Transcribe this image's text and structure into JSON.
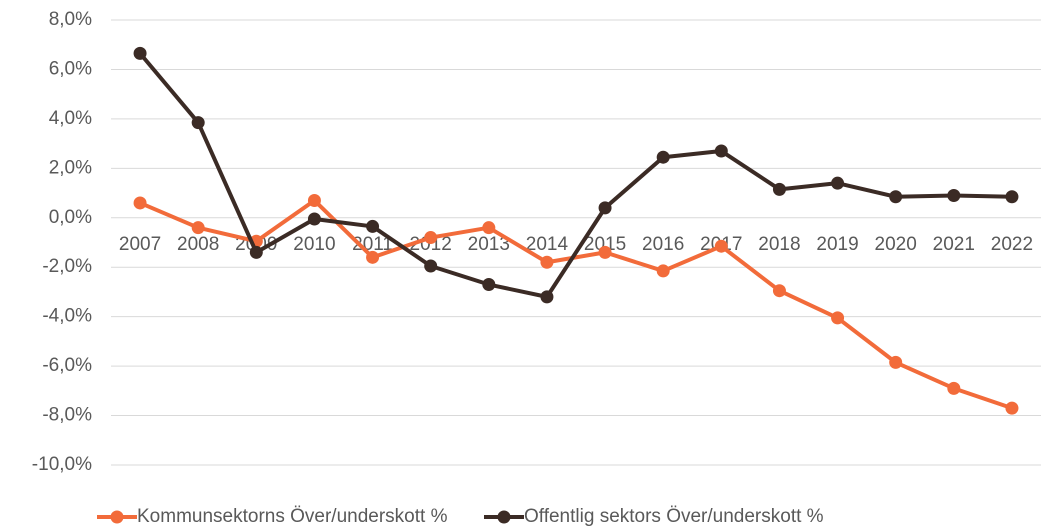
{
  "chart_data": {
    "type": "line",
    "categories": [
      "2007",
      "2008",
      "2009",
      "2010",
      "2011",
      "2012",
      "2013",
      "2014",
      "2015",
      "2016",
      "2017",
      "2018",
      "2019",
      "2020",
      "2021",
      "2022"
    ],
    "series": [
      {
        "name": "Kommunsektorns Över/underskott %",
        "color": "#f26b3a",
        "values": [
          0.6,
          -0.4,
          -0.95,
          0.7,
          -1.6,
          -0.8,
          -0.4,
          -1.8,
          -1.4,
          -2.15,
          -1.15,
          -2.95,
          -4.05,
          -5.85,
          -6.9,
          -7.7
        ]
      },
      {
        "name": "Offentlig sektors Över/underskott %",
        "color": "#3b2b25",
        "values": [
          6.65,
          3.85,
          -1.4,
          -0.05,
          -0.35,
          -1.95,
          -2.7,
          -3.2,
          0.4,
          2.45,
          2.7,
          1.15,
          1.4,
          0.85,
          0.9,
          0.85
        ]
      }
    ],
    "ylim": [
      -10,
      8
    ],
    "yticks": [
      {
        "value": -10,
        "label": "-10,0%"
      },
      {
        "value": -8,
        "label": "-8,0%"
      },
      {
        "value": -6,
        "label": "-6,0%"
      },
      {
        "value": -4,
        "label": "-4,0%"
      },
      {
        "value": -2,
        "label": "-2,0%"
      },
      {
        "value": 0,
        "label": "0,0%"
      },
      {
        "value": 2,
        "label": "2,0%"
      },
      {
        "value": 4,
        "label": "4,0%"
      },
      {
        "value": 6,
        "label": "6,0%"
      },
      {
        "value": 8,
        "label": "8,0%"
      }
    ],
    "grid": true,
    "legend": "bottom"
  }
}
